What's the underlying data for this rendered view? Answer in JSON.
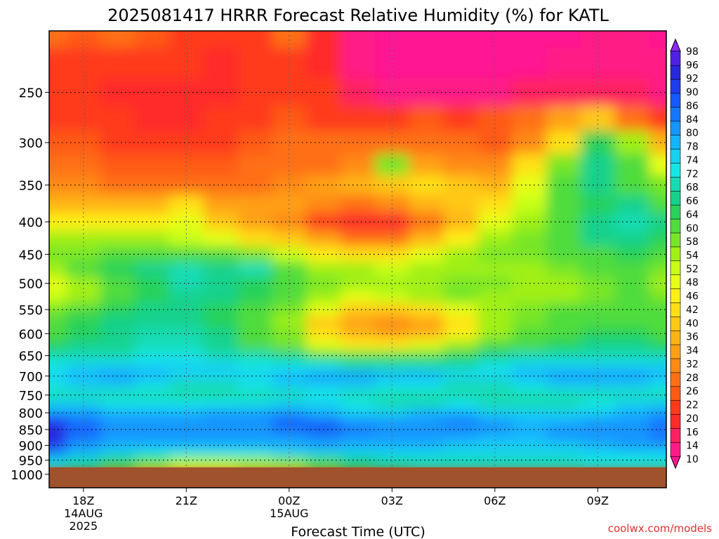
{
  "chart_data": {
    "type": "heatmap",
    "title": "2025081417 HRRR Forecast Relative Humidity (%) for KATL",
    "xlabel": "Forecast Time (UTC)",
    "ylabel": "",
    "credit": "coolwx.com/models",
    "x_ticks": [
      {
        "label": "18Z",
        "sub": [
          "14AUG",
          "2025"
        ]
      },
      {
        "label": "21Z",
        "sub": []
      },
      {
        "label": "00Z",
        "sub": [
          "15AUG"
        ]
      },
      {
        "label": "03Z",
        "sub": []
      },
      {
        "label": "06Z",
        "sub": []
      },
      {
        "label": "09Z",
        "sub": []
      }
    ],
    "x_hours": [
      18,
      21,
      24,
      27,
      30,
      33
    ],
    "x_range_hours": [
      17,
      35
    ],
    "y_scale": "log-pressure",
    "y_range_hpa": [
      1050,
      200
    ],
    "y_ticks": [
      250,
      300,
      350,
      400,
      450,
      500,
      550,
      600,
      650,
      700,
      750,
      800,
      850,
      900,
      950,
      1000
    ],
    "ground_level_hpa": 975,
    "grid": true,
    "colorbar_levels": [
      10,
      14,
      16,
      20,
      22,
      26,
      28,
      32,
      34,
      36,
      40,
      42,
      46,
      48,
      52,
      54,
      58,
      60,
      64,
      66,
      68,
      72,
      74,
      78,
      80,
      84,
      86,
      90,
      92,
      96,
      98
    ],
    "colorbar_colors": [
      "#ff1493",
      "#ff1a85",
      "#ff2060",
      "#ff2a2a",
      "#ff3a1a",
      "#ff5a14",
      "#ff7014",
      "#ff8a14",
      "#ffa014",
      "#ffb414",
      "#ffc814",
      "#ffe014",
      "#fff014",
      "#e6ff14",
      "#c8ff14",
      "#a0f014",
      "#78e628",
      "#50dc3c",
      "#28d25a",
      "#14d28c",
      "#14dcb4",
      "#14e6e6",
      "#14d2f0",
      "#14b4ff",
      "#1496ff",
      "#1478ff",
      "#145aff",
      "#1e3cf0",
      "#2828dc",
      "#5020e6",
      "#8c28ff"
    ],
    "columns_hours": [
      17,
      18,
      19,
      20,
      21,
      22,
      23,
      24,
      25,
      26,
      27,
      28,
      29,
      30,
      31,
      32,
      33,
      34,
      35
    ],
    "rows_hpa": [
      200,
      225,
      250,
      275,
      300,
      325,
      350,
      375,
      400,
      425,
      450,
      475,
      500,
      525,
      550,
      575,
      600,
      625,
      650,
      675,
      700,
      725,
      750,
      775,
      800,
      825,
      850,
      875,
      900,
      925,
      950,
      975
    ],
    "rh_values": [
      [
        30,
        26,
        28,
        26,
        24,
        24,
        25,
        30,
        20,
        15,
        12,
        12,
        12,
        12,
        12,
        12,
        14,
        14,
        12
      ],
      [
        24,
        24,
        22,
        22,
        22,
        20,
        22,
        24,
        20,
        15,
        12,
        12,
        12,
        12,
        12,
        14,
        14,
        14,
        14
      ],
      [
        22,
        22,
        20,
        20,
        20,
        20,
        22,
        22,
        22,
        18,
        14,
        14,
        14,
        14,
        16,
        18,
        18,
        16,
        14
      ],
      [
        22,
        24,
        22,
        20,
        20,
        22,
        24,
        26,
        24,
        22,
        22,
        26,
        24,
        26,
        30,
        34,
        40,
        30,
        22
      ],
      [
        26,
        26,
        24,
        24,
        24,
        24,
        26,
        28,
        28,
        28,
        30,
        30,
        28,
        26,
        32,
        44,
        64,
        56,
        38
      ],
      [
        28,
        28,
        26,
        26,
        26,
        26,
        28,
        30,
        30,
        32,
        58,
        34,
        32,
        32,
        44,
        58,
        66,
        60,
        48
      ],
      [
        32,
        32,
        30,
        30,
        30,
        30,
        30,
        32,
        34,
        36,
        40,
        44,
        40,
        36,
        48,
        62,
        66,
        62,
        58
      ],
      [
        38,
        38,
        36,
        36,
        42,
        34,
        34,
        34,
        32,
        30,
        32,
        36,
        40,
        44,
        52,
        60,
        64,
        66,
        62
      ],
      [
        46,
        46,
        46,
        46,
        48,
        40,
        34,
        32,
        24,
        20,
        20,
        30,
        38,
        48,
        56,
        62,
        66,
        68,
        66
      ],
      [
        54,
        54,
        54,
        54,
        52,
        48,
        44,
        40,
        34,
        30,
        30,
        38,
        46,
        54,
        58,
        62,
        66,
        66,
        64
      ],
      [
        58,
        58,
        60,
        60,
        62,
        60,
        58,
        52,
        46,
        44,
        42,
        48,
        54,
        58,
        58,
        60,
        62,
        64,
        60
      ],
      [
        56,
        60,
        64,
        66,
        68,
        66,
        68,
        62,
        56,
        54,
        52,
        54,
        56,
        56,
        56,
        58,
        60,
        60,
        58
      ],
      [
        48,
        54,
        62,
        64,
        68,
        66,
        64,
        60,
        58,
        56,
        54,
        56,
        58,
        58,
        56,
        54,
        58,
        60,
        56
      ],
      [
        52,
        56,
        60,
        64,
        66,
        66,
        64,
        60,
        56,
        48,
        52,
        56,
        58,
        56,
        54,
        56,
        58,
        60,
        58
      ],
      [
        58,
        62,
        64,
        66,
        66,
        64,
        62,
        58,
        48,
        40,
        40,
        42,
        50,
        56,
        58,
        60,
        62,
        62,
        60
      ],
      [
        60,
        64,
        66,
        66,
        66,
        64,
        62,
        56,
        40,
        34,
        32,
        34,
        44,
        54,
        58,
        60,
        62,
        62,
        60
      ],
      [
        62,
        64,
        66,
        68,
        68,
        66,
        62,
        58,
        44,
        36,
        34,
        36,
        46,
        56,
        60,
        62,
        64,
        64,
        62
      ],
      [
        64,
        66,
        66,
        68,
        68,
        66,
        62,
        58,
        50,
        46,
        46,
        50,
        56,
        60,
        62,
        64,
        66,
        66,
        64
      ],
      [
        68,
        70,
        70,
        72,
        72,
        70,
        68,
        66,
        62,
        60,
        60,
        62,
        64,
        66,
        68,
        70,
        70,
        70,
        68
      ],
      [
        72,
        74,
        74,
        76,
        74,
        74,
        72,
        72,
        72,
        70,
        70,
        70,
        70,
        72,
        74,
        76,
        76,
        76,
        74
      ],
      [
        74,
        78,
        80,
        78,
        76,
        76,
        76,
        78,
        80,
        80,
        78,
        78,
        76,
        76,
        78,
        80,
        82,
        80,
        78
      ],
      [
        72,
        74,
        74,
        72,
        70,
        70,
        72,
        74,
        74,
        74,
        72,
        72,
        70,
        70,
        72,
        74,
        74,
        74,
        72
      ],
      [
        70,
        70,
        70,
        68,
        68,
        68,
        70,
        70,
        72,
        70,
        68,
        70,
        70,
        68,
        68,
        70,
        70,
        70,
        70
      ],
      [
        74,
        74,
        72,
        72,
        72,
        72,
        72,
        74,
        74,
        72,
        68,
        70,
        72,
        70,
        70,
        70,
        72,
        74,
        74
      ],
      [
        80,
        80,
        78,
        78,
        78,
        80,
        80,
        80,
        78,
        76,
        76,
        78,
        78,
        76,
        74,
        74,
        76,
        78,
        80
      ],
      [
        90,
        84,
        80,
        80,
        80,
        82,
        82,
        86,
        84,
        80,
        80,
        82,
        84,
        80,
        78,
        78,
        80,
        82,
        84
      ],
      [
        92,
        86,
        82,
        82,
        82,
        82,
        82,
        84,
        90,
        84,
        82,
        80,
        82,
        80,
        78,
        80,
        82,
        82,
        84
      ],
      [
        92,
        84,
        80,
        80,
        82,
        80,
        80,
        80,
        82,
        80,
        80,
        80,
        80,
        78,
        78,
        80,
        80,
        82,
        84
      ],
      [
        90,
        82,
        78,
        78,
        78,
        78,
        78,
        78,
        80,
        78,
        78,
        78,
        76,
        76,
        76,
        76,
        78,
        80,
        80
      ],
      [
        84,
        78,
        74,
        72,
        72,
        72,
        72,
        74,
        76,
        74,
        74,
        74,
        74,
        74,
        74,
        74,
        76,
        76,
        76
      ],
      [
        76,
        70,
        64,
        60,
        56,
        56,
        56,
        58,
        62,
        66,
        68,
        70,
        70,
        70,
        70,
        70,
        72,
        72,
        72
      ],
      [
        70,
        66,
        60,
        56,
        52,
        52,
        54,
        56,
        60,
        64,
        66,
        68,
        68,
        68,
        68,
        68,
        70,
        70,
        70
      ]
    ]
  }
}
